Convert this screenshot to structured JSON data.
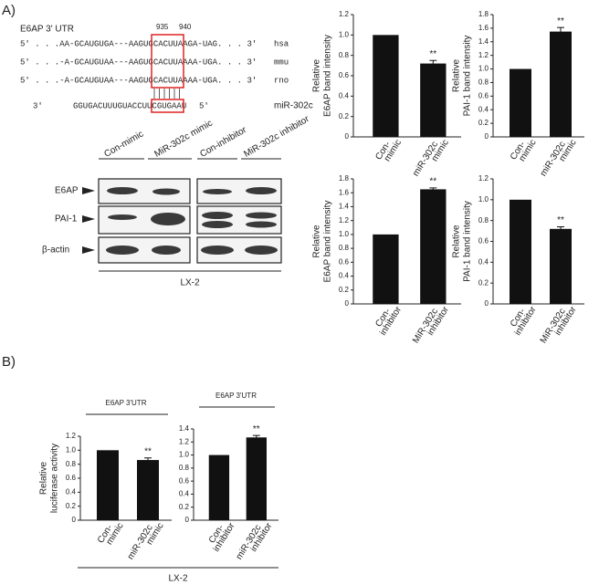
{
  "figure": {
    "panel_a": "A)",
    "panel_b": "B)",
    "utr_title": "E6AP 3' UTR",
    "positions": [
      "935",
      "940"
    ],
    "utr_lines": [
      {
        "seq": "5'  . . .AA-GCAUGUGA---AAGUGCACUUAAGA-UAG. . .  3'",
        "species": "hsa"
      },
      {
        "seq": "5'  . . .-A-GCAUGUAA---AAGUGCACUUAAAA-UGA. . .  3'",
        "species": "mmu"
      },
      {
        "seq": "5'  . . .-A-GCAUGUAA---AAGUGCACUUAAAA-UGA. . .  3'",
        "species": "rno"
      }
    ],
    "mirna": {
      "left": "3'",
      "seq": "GGUGACUUUGUACCUUCGUGAAU",
      "right": "5'",
      "name": "miR-302c"
    },
    "blot": {
      "columns": [
        "Con-mimic",
        "MiR-302c mimic",
        "Con-inhibitor",
        "MiR-302c inhibitor"
      ],
      "rows": [
        "E6AP",
        "PAI-1",
        "β-actin"
      ],
      "cell": "LX-2"
    },
    "b_cell": "LX-2"
  },
  "chart_data": [
    {
      "type": "bar",
      "ylabel": [
        "Relative",
        "E6AP band intensity"
      ],
      "categories": [
        [
          "Con-",
          "mimic"
        ],
        [
          "miR-302c",
          "mimic"
        ]
      ],
      "values": [
        1.0,
        0.72
      ],
      "errors": [
        null,
        0.03
      ],
      "sig": [
        null,
        "**"
      ],
      "color": "#111111",
      "ylim": [
        0,
        1.2
      ],
      "yticks": [
        0,
        0.2,
        0.4,
        0.6,
        0.8,
        {
          "value": 1,
          "label": "1.0"
        },
        1.2
      ]
    },
    {
      "type": "bar",
      "ylabel": [
        "Relative",
        "PAI-1 band intensity"
      ],
      "categories": [
        [
          "Con-",
          "mimic"
        ],
        [
          "miR-302c",
          "mimic"
        ]
      ],
      "values": [
        1.0,
        1.55
      ],
      "errors": [
        null,
        0.06
      ],
      "sig": [
        null,
        "**"
      ],
      "color": "#111111",
      "ylim": [
        0,
        1.8
      ],
      "yticks": [
        0,
        0.2,
        0.4,
        0.6,
        0.8,
        {
          "value": 1,
          "label": "1.0"
        },
        1.2,
        1.4,
        1.6,
        1.8
      ]
    },
    {
      "type": "bar",
      "ylabel": [
        "Relative",
        "E6AP band intensity"
      ],
      "categories": [
        [
          "Con-",
          "inhibitor"
        ],
        [
          "MiR-302c",
          "inhibitor"
        ]
      ],
      "values": [
        1.0,
        1.65
      ],
      "errors": [
        null,
        0.02
      ],
      "sig": [
        null,
        "**"
      ],
      "color": "#111111",
      "ylim": [
        0,
        1.8
      ],
      "yticks": [
        0,
        0.2,
        0.4,
        0.6,
        0.8,
        {
          "value": 1,
          "label": "1.0"
        },
        1.2,
        1.4,
        1.6,
        1.8
      ]
    },
    {
      "type": "bar",
      "ylabel": [
        "Relative",
        "PAI-1 band intensity"
      ],
      "categories": [
        [
          "Con-",
          "inhibitor"
        ],
        [
          "MiR-302c",
          "inhibitor"
        ]
      ],
      "values": [
        1.0,
        0.72
      ],
      "errors": [
        null,
        0.02
      ],
      "sig": [
        null,
        "**"
      ],
      "color": "#111111",
      "ylim": [
        0,
        1.2
      ],
      "yticks": [
        0,
        0.2,
        0.4,
        0.6,
        0.8,
        {
          "value": 1,
          "label": "1.0"
        },
        1.2
      ]
    },
    {
      "type": "bar",
      "title": "E6AP  3'UTR",
      "ylabel": [
        "Relative",
        "luciferase activity"
      ],
      "categories": [
        [
          "Con-",
          "mimic"
        ],
        [
          "miR-302c",
          "mimic"
        ]
      ],
      "values": [
        1.0,
        0.86
      ],
      "errors": [
        null,
        0.03
      ],
      "sig": [
        null,
        "**"
      ],
      "color": "#111111",
      "ylim": [
        0,
        1.2
      ],
      "yticks": [
        0,
        0.2,
        0.4,
        0.6,
        0.8,
        {
          "value": 1,
          "label": "1.0"
        },
        1.2
      ]
    },
    {
      "type": "bar",
      "title": "E6AP  3'UTR",
      "categories": [
        [
          "Con-",
          "inhibitor"
        ],
        [
          "miR-302c",
          "inhibitor"
        ]
      ],
      "values": [
        1.0,
        1.27
      ],
      "errors": [
        null,
        0.03
      ],
      "sig": [
        null,
        "**"
      ],
      "color": "#111111",
      "ylim": [
        0,
        1.4
      ],
      "yticks": [
        0,
        0.2,
        0.4,
        0.6,
        0.8,
        {
          "value": 1,
          "label": "1.0"
        },
        1.2,
        1.4
      ]
    }
  ]
}
